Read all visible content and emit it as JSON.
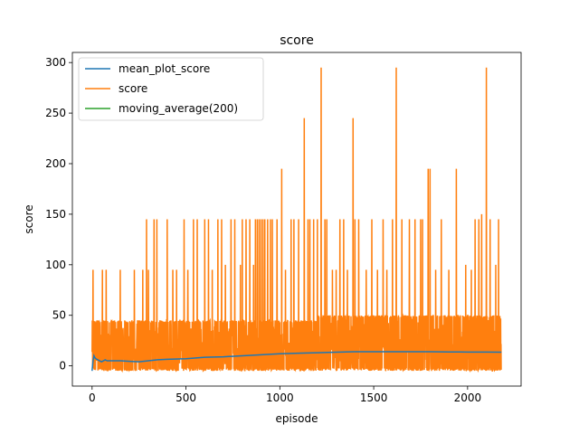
{
  "chart_data": {
    "type": "line",
    "title": "score",
    "xlabel": "episode",
    "ylabel": "score",
    "xlim": [
      -105,
      2285
    ],
    "ylim": [
      -20,
      310
    ],
    "xticks": [
      0,
      500,
      1000,
      1500,
      2000
    ],
    "yticks": [
      0,
      50,
      100,
      150,
      200,
      250,
      300
    ],
    "xtick_labels": [
      "0",
      "500",
      "1000",
      "1500",
      "2000"
    ],
    "ytick_labels": [
      "0",
      "50",
      "100",
      "150",
      "200",
      "250",
      "300"
    ],
    "grid": false,
    "legend_position": "upper-left",
    "n_episodes": 2180,
    "series": [
      {
        "name": "mean_plot_score",
        "color": "#1f77b4",
        "points": [
          [
            0,
            -5
          ],
          [
            5,
            5
          ],
          [
            10,
            10
          ],
          [
            15,
            8
          ],
          [
            20,
            7
          ],
          [
            30,
            6
          ],
          [
            40,
            5
          ],
          [
            50,
            4
          ],
          [
            60,
            5
          ],
          [
            70,
            6
          ],
          [
            80,
            5
          ],
          [
            100,
            5
          ],
          [
            150,
            5
          ],
          [
            200,
            4.5
          ],
          [
            250,
            4
          ],
          [
            300,
            5
          ],
          [
            350,
            6
          ],
          [
            400,
            6.5
          ],
          [
            500,
            7
          ],
          [
            600,
            8.5
          ],
          [
            700,
            9
          ],
          [
            800,
            10
          ],
          [
            900,
            11
          ],
          [
            1000,
            12
          ],
          [
            1100,
            12.5
          ],
          [
            1200,
            13
          ],
          [
            1300,
            13.5
          ],
          [
            1400,
            14
          ],
          [
            1500,
            14
          ],
          [
            1600,
            14
          ],
          [
            1700,
            14
          ],
          [
            1800,
            14
          ],
          [
            1900,
            13.8
          ],
          [
            2000,
            13.7
          ],
          [
            2100,
            13.6
          ],
          [
            2180,
            13.5
          ]
        ]
      },
      {
        "name": "score",
        "color": "#ff7f0e",
        "spikes": [
          [
            5,
            95
          ],
          [
            55,
            95
          ],
          [
            75,
            95
          ],
          [
            150,
            95
          ],
          [
            225,
            95
          ],
          [
            270,
            95
          ],
          [
            290,
            145
          ],
          [
            300,
            95
          ],
          [
            330,
            145
          ],
          [
            345,
            145
          ],
          [
            400,
            145
          ],
          [
            430,
            95
          ],
          [
            450,
            95
          ],
          [
            490,
            145
          ],
          [
            510,
            95
          ],
          [
            540,
            145
          ],
          [
            560,
            145
          ],
          [
            600,
            145
          ],
          [
            620,
            145
          ],
          [
            640,
            95
          ],
          [
            670,
            145
          ],
          [
            690,
            145
          ],
          [
            710,
            100
          ],
          [
            740,
            145
          ],
          [
            760,
            145
          ],
          [
            790,
            100
          ],
          [
            800,
            145
          ],
          [
            820,
            145
          ],
          [
            840,
            145
          ],
          [
            860,
            100
          ],
          [
            870,
            145
          ],
          [
            880,
            145
          ],
          [
            890,
            145
          ],
          [
            900,
            145
          ],
          [
            910,
            145
          ],
          [
            920,
            145
          ],
          [
            935,
            145
          ],
          [
            950,
            145
          ],
          [
            960,
            145
          ],
          [
            985,
            145
          ],
          [
            1010,
            195
          ],
          [
            1030,
            95
          ],
          [
            1060,
            145
          ],
          [
            1075,
            145
          ],
          [
            1100,
            145
          ],
          [
            1130,
            245
          ],
          [
            1150,
            145
          ],
          [
            1160,
            145
          ],
          [
            1180,
            145
          ],
          [
            1200,
            145
          ],
          [
            1220,
            295
          ],
          [
            1240,
            145
          ],
          [
            1250,
            145
          ],
          [
            1280,
            95
          ],
          [
            1300,
            95
          ],
          [
            1320,
            145
          ],
          [
            1340,
            145
          ],
          [
            1360,
            95
          ],
          [
            1390,
            245
          ],
          [
            1400,
            145
          ],
          [
            1420,
            145
          ],
          [
            1460,
            95
          ],
          [
            1490,
            145
          ],
          [
            1520,
            95
          ],
          [
            1550,
            145
          ],
          [
            1570,
            95
          ],
          [
            1600,
            145
          ],
          [
            1620,
            295
          ],
          [
            1650,
            145
          ],
          [
            1690,
            145
          ],
          [
            1720,
            145
          ],
          [
            1750,
            145
          ],
          [
            1760,
            145
          ],
          [
            1790,
            195
          ],
          [
            1800,
            195
          ],
          [
            1830,
            95
          ],
          [
            1860,
            145
          ],
          [
            1900,
            95
          ],
          [
            1940,
            195
          ],
          [
            1990,
            100
          ],
          [
            2020,
            95
          ],
          [
            2040,
            145
          ],
          [
            2060,
            145
          ],
          [
            2075,
            150
          ],
          [
            2100,
            295
          ],
          [
            2120,
            145
          ],
          [
            2150,
            100
          ],
          [
            2165,
            145
          ],
          [
            2180,
            145
          ]
        ]
      },
      {
        "name": "moving_average(200)",
        "color": "#2ca02c",
        "points": []
      }
    ]
  }
}
